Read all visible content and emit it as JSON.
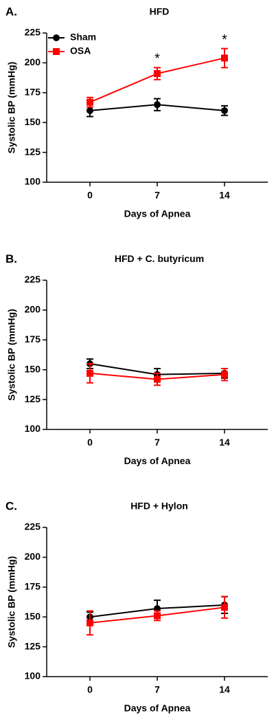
{
  "chart_data": [
    {
      "type": "line",
      "panel": "A.",
      "title": "HFD",
      "xlabel": "Days of Apnea",
      "ylabel": "Systolic BP (mmHg)",
      "x": [
        0,
        7,
        14
      ],
      "xlim": [
        -4.5,
        18.5
      ],
      "xticks": [
        0,
        7,
        14
      ],
      "ylim": [
        100,
        225
      ],
      "yticks": [
        100,
        125,
        150,
        175,
        200,
        225
      ],
      "legend": "upper left",
      "series": [
        {
          "name": "Sham",
          "color": "#000000",
          "marker": "circle",
          "values": [
            160,
            165,
            160
          ],
          "errors": [
            5,
            5,
            4
          ]
        },
        {
          "name": "OSA",
          "color": "#ff0000",
          "marker": "square",
          "values": [
            167,
            191,
            204
          ],
          "errors": [
            4,
            5,
            8
          ]
        }
      ],
      "annotations": [
        {
          "text": "*",
          "x": 7
        },
        {
          "text": "*",
          "x": 14
        }
      ]
    },
    {
      "type": "line",
      "panel": "B.",
      "title": "HFD + C. butyricum",
      "xlabel": "Days of Apnea",
      "ylabel": "Systolic BP (mmHg)",
      "x": [
        0,
        7,
        14
      ],
      "xlim": [
        -4.5,
        18.5
      ],
      "xticks": [
        0,
        7,
        14
      ],
      "ylim": [
        100,
        225
      ],
      "yticks": [
        100,
        125,
        150,
        175,
        200,
        225
      ],
      "series": [
        {
          "color": "#000000",
          "marker": "circle",
          "values": [
            155,
            146,
            147
          ],
          "errors": [
            4,
            5,
            4
          ]
        },
        {
          "color": "#ff0000",
          "marker": "square",
          "values": [
            147,
            142,
            146
          ],
          "errors": [
            8,
            5,
            5
          ]
        }
      ]
    },
    {
      "type": "line",
      "panel": "C.",
      "title": "HFD + Hylon",
      "xlabel": "Days of Apnea",
      "ylabel": "Systolic BP (mmHg)",
      "x": [
        0,
        7,
        14
      ],
      "xlim": [
        -4.5,
        18.5
      ],
      "xticks": [
        0,
        7,
        14
      ],
      "ylim": [
        100,
        225
      ],
      "yticks": [
        100,
        125,
        150,
        175,
        200,
        225
      ],
      "series": [
        {
          "color": "#000000",
          "marker": "circle",
          "values": [
            150,
            157,
            160
          ],
          "errors": [
            4,
            7,
            7
          ]
        },
        {
          "color": "#ff0000",
          "marker": "square",
          "values": [
            145,
            151,
            158
          ],
          "errors": [
            10,
            4,
            9
          ]
        }
      ]
    }
  ]
}
